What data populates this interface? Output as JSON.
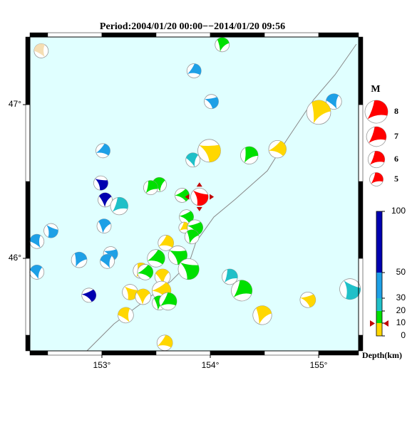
{
  "title": "Period:2004/01/20 00:00−−2014/01/20 09:56",
  "map": {
    "xlim": [
      152.336,
      155.368
    ],
    "ylim": [
      45.398,
      47.44
    ],
    "xticks": [
      {
        "value": 153,
        "label": "153°"
      },
      {
        "value": 154,
        "label": "154°"
      },
      {
        "value": 155,
        "label": "155°"
      }
    ],
    "yticks": [
      {
        "value": 46,
        "label": "46°"
      },
      {
        "value": 47,
        "label": "47°"
      }
    ],
    "events": [
      {
        "lon": 152.44,
        "lat": 47.35,
        "mag": 5,
        "color": "#f5deb3"
      },
      {
        "lon": 154.11,
        "lat": 47.39,
        "mag": 5,
        "color": "#00e000"
      },
      {
        "lon": 153.85,
        "lat": 47.22,
        "mag": 5,
        "color": "#1ea0e6"
      },
      {
        "lon": 154.01,
        "lat": 47.02,
        "mag": 5,
        "color": "#1ea0e6"
      },
      {
        "lon": 155.14,
        "lat": 47.02,
        "mag": 5.4,
        "color": "#1ea0e6"
      },
      {
        "lon": 155.0,
        "lat": 46.95,
        "mag": 8,
        "color": "#ffd700"
      },
      {
        "lon": 153.01,
        "lat": 46.7,
        "mag": 5,
        "color": "#1ea0e6"
      },
      {
        "lon": 153.99,
        "lat": 46.7,
        "mag": 7.6,
        "color": "#ffd700"
      },
      {
        "lon": 153.84,
        "lat": 46.64,
        "mag": 5,
        "color": "#20c0c8"
      },
      {
        "lon": 154.36,
        "lat": 46.67,
        "mag": 6,
        "color": "#00e000"
      },
      {
        "lon": 154.62,
        "lat": 46.71,
        "mag": 6,
        "color": "#ffd700"
      },
      {
        "lon": 152.99,
        "lat": 46.49,
        "mag": 5,
        "color": "#0000b0"
      },
      {
        "lon": 153.53,
        "lat": 46.48,
        "mag": 5,
        "color": "#00e000"
      },
      {
        "lon": 153.45,
        "lat": 46.46,
        "mag": 5,
        "color": "#00e000"
      },
      {
        "lon": 153.74,
        "lat": 46.41,
        "mag": 5,
        "color": "#00e000"
      },
      {
        "lon": 153.9,
        "lat": 46.4,
        "mag": 6,
        "color": "#ff0000"
      },
      {
        "lon": 153.03,
        "lat": 46.38,
        "mag": 5,
        "color": "#0000b0"
      },
      {
        "lon": 153.16,
        "lat": 46.34,
        "mag": 6,
        "color": "#20c0c8"
      },
      {
        "lon": 153.78,
        "lat": 46.27,
        "mag": 5,
        "color": "#00e000"
      },
      {
        "lon": 152.53,
        "lat": 46.18,
        "mag": 5,
        "color": "#1ea0e6"
      },
      {
        "lon": 153.02,
        "lat": 46.21,
        "mag": 5,
        "color": "#1ea0e6"
      },
      {
        "lon": 153.76,
        "lat": 46.2,
        "mag": 4,
        "color": "#ffd700"
      },
      {
        "lon": 153.86,
        "lat": 46.2,
        "mag": 5.4,
        "color": "#00e000"
      },
      {
        "lon": 152.4,
        "lat": 46.11,
        "mag": 5,
        "color": "#1ea0e6"
      },
      {
        "lon": 153.83,
        "lat": 46.14,
        "mag": 5,
        "color": "#00e000"
      },
      {
        "lon": 153.59,
        "lat": 46.1,
        "mag": 5.4,
        "color": "#ffd700"
      },
      {
        "lon": 153.08,
        "lat": 46.03,
        "mag": 5,
        "color": "#1ea0e6"
      },
      {
        "lon": 153.05,
        "lat": 45.98,
        "mag": 5,
        "color": "#1ea0e6"
      },
      {
        "lon": 152.79,
        "lat": 45.99,
        "mag": 5.4,
        "color": "#1ea0e6"
      },
      {
        "lon": 153.5,
        "lat": 46.0,
        "mag": 6,
        "color": "#00e000"
      },
      {
        "lon": 153.7,
        "lat": 46.02,
        "mag": 6.4,
        "color": "#00e000"
      },
      {
        "lon": 152.4,
        "lat": 45.91,
        "mag": 5,
        "color": "#1ea0e6"
      },
      {
        "lon": 153.36,
        "lat": 45.92,
        "mag": 5.4,
        "color": "#ffd700"
      },
      {
        "lon": 153.4,
        "lat": 45.91,
        "mag": 5.4,
        "color": "#00e000"
      },
      {
        "lon": 153.8,
        "lat": 45.93,
        "mag": 7,
        "color": "#00e000"
      },
      {
        "lon": 153.56,
        "lat": 45.88,
        "mag": 5.4,
        "color": "#ffd700"
      },
      {
        "lon": 154.18,
        "lat": 45.88,
        "mag": 5.4,
        "color": "#20c0c8"
      },
      {
        "lon": 153.55,
        "lat": 45.79,
        "mag": 6.4,
        "color": "#ffd700"
      },
      {
        "lon": 153.26,
        "lat": 45.78,
        "mag": 5.4,
        "color": "#ffd700"
      },
      {
        "lon": 153.38,
        "lat": 45.75,
        "mag": 5.4,
        "color": "#ffd700"
      },
      {
        "lon": 154.29,
        "lat": 45.79,
        "mag": 7,
        "color": "#00e000"
      },
      {
        "lon": 152.88,
        "lat": 45.76,
        "mag": 5,
        "color": "#0000b0"
      },
      {
        "lon": 155.29,
        "lat": 45.8,
        "mag": 7,
        "color": "#20c0c8"
      },
      {
        "lon": 153.53,
        "lat": 45.71,
        "mag": 5,
        "color": "#00e000"
      },
      {
        "lon": 153.61,
        "lat": 45.72,
        "mag": 6,
        "color": "#00e000"
      },
      {
        "lon": 154.9,
        "lat": 45.73,
        "mag": 5.4,
        "color": "#ffd700"
      },
      {
        "lon": 153.22,
        "lat": 45.63,
        "mag": 5.4,
        "color": "#ffd700"
      },
      {
        "lon": 154.48,
        "lat": 45.63,
        "mag": 6.4,
        "color": "#ffd700"
      },
      {
        "lon": 153.58,
        "lat": 45.45,
        "mag": 5.4,
        "color": "#ffd700"
      }
    ]
  },
  "legend": {
    "title": "M",
    "magnitudes": [
      8,
      7,
      6,
      5
    ],
    "color": "#ff0000"
  },
  "depth_scale": {
    "label": "Depth(km)",
    "ticks": [
      100,
      50,
      30,
      20,
      10,
      0
    ],
    "bands": [
      {
        "range": [
          0,
          10
        ],
        "color": "#ffd700"
      },
      {
        "range": [
          10,
          20
        ],
        "color": "#00e000"
      },
      {
        "range": [
          20,
          30
        ],
        "color": "#20c0c8"
      },
      {
        "range": [
          30,
          50
        ],
        "color": "#1ea0e6"
      },
      {
        "range": [
          50,
          100
        ],
        "color": "#0000b0"
      }
    ]
  }
}
